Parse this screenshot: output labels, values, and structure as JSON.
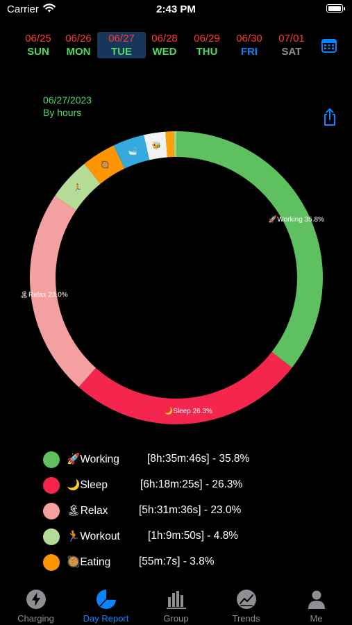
{
  "status_bar": {
    "carrier": "Carrier",
    "time": "2:43 PM",
    "battery_level": 1.0
  },
  "week": [
    {
      "date": "06/25",
      "dow": "SUN",
      "dow_color": "#4cd964"
    },
    {
      "date": "06/26",
      "dow": "MON",
      "dow_color": "#4cd964"
    },
    {
      "date": "06/27",
      "dow": "TUE",
      "dow_color": "#4cd964",
      "selected": true
    },
    {
      "date": "06/28",
      "dow": "WED",
      "dow_color": "#4cd964"
    },
    {
      "date": "06/29",
      "dow": "THU",
      "dow_color": "#4cd964"
    },
    {
      "date": "06/30",
      "dow": "FRI",
      "dow_color": "#0a84ff"
    },
    {
      "date": "07/01",
      "dow": "SAT",
      "dow_color": "#8e8e93"
    }
  ],
  "report": {
    "date": "06/27/2023",
    "mode": "By hours"
  },
  "chart_data": {
    "type": "pie",
    "style": "donut",
    "series": [
      {
        "name": "Working",
        "icon": "🚀",
        "percent": 35.8,
        "color": "#5fc060",
        "slice_label": "🚀Working 35.8%"
      },
      {
        "name": "Sleep",
        "icon": "🌙",
        "percent": 26.3,
        "color": "#f5264e",
        "slice_label": "🌙Sleep 26.3%"
      },
      {
        "name": "Relax",
        "icon": "🏝",
        "percent": 23.0,
        "color": "#f4a0a0",
        "slice_label": "🏝Relax 23.0%"
      },
      {
        "name": "Workout",
        "icon": "🏃",
        "percent": 4.8,
        "color": "#b5dc97",
        "slice_label": "🏃"
      },
      {
        "name": "Eating",
        "icon": "🥘",
        "percent": 3.8,
        "color": "#ff9500",
        "slice_label": "🥘"
      },
      {
        "name": "",
        "icon": "🛁",
        "percent": 3.5,
        "color": "#34aadc",
        "slice_label": "🛁"
      },
      {
        "name": "",
        "icon": "🐝",
        "percent": 2.4,
        "color": "#f2f2f2",
        "slice_label": "🐝"
      },
      {
        "name": "",
        "icon": "",
        "percent": 0.9,
        "color": "#ff9f0a",
        "slice_label": ""
      },
      {
        "name": "",
        "icon": "",
        "percent": 0.3,
        "color": "#a8d37a",
        "slice_label": ""
      }
    ]
  },
  "legend": [
    {
      "icon": "🚀",
      "name": "Working",
      "duration": "[8h:35m:46s]  -  35.8%",
      "color": "#5fc060"
    },
    {
      "icon": "🌙",
      "name": "Sleep",
      "duration": "[6h:18m:25s]  -  26.3%",
      "color": "#f5264e"
    },
    {
      "icon": "🏝",
      "name": "Relax",
      "duration": "[5h:31m:36s]  -  23.0%",
      "color": "#f4a0a0"
    },
    {
      "icon": "🏃",
      "name": "Workout",
      "duration": "[1h:9m:50s]  -  4.8%",
      "color": "#b5dc97"
    },
    {
      "icon": "🥘",
      "name": "Eating",
      "duration": "[55m:7s]  -  3.8%",
      "color": "#ff9500"
    }
  ],
  "tabs": [
    {
      "label": "Charging",
      "icon": "bolt-icon"
    },
    {
      "label": "Day Report",
      "icon": "pie-chart-icon",
      "active": true
    },
    {
      "label": "Group",
      "icon": "bar-chart-icon"
    },
    {
      "label": "Trends",
      "icon": "trend-chart-icon"
    },
    {
      "label": "Me",
      "icon": "person-icon"
    }
  ],
  "colors": {
    "accent": "#0a84ff",
    "green": "#4cd964",
    "date_red": "#ff3b30",
    "inactive_tab": "#8e8e93"
  }
}
